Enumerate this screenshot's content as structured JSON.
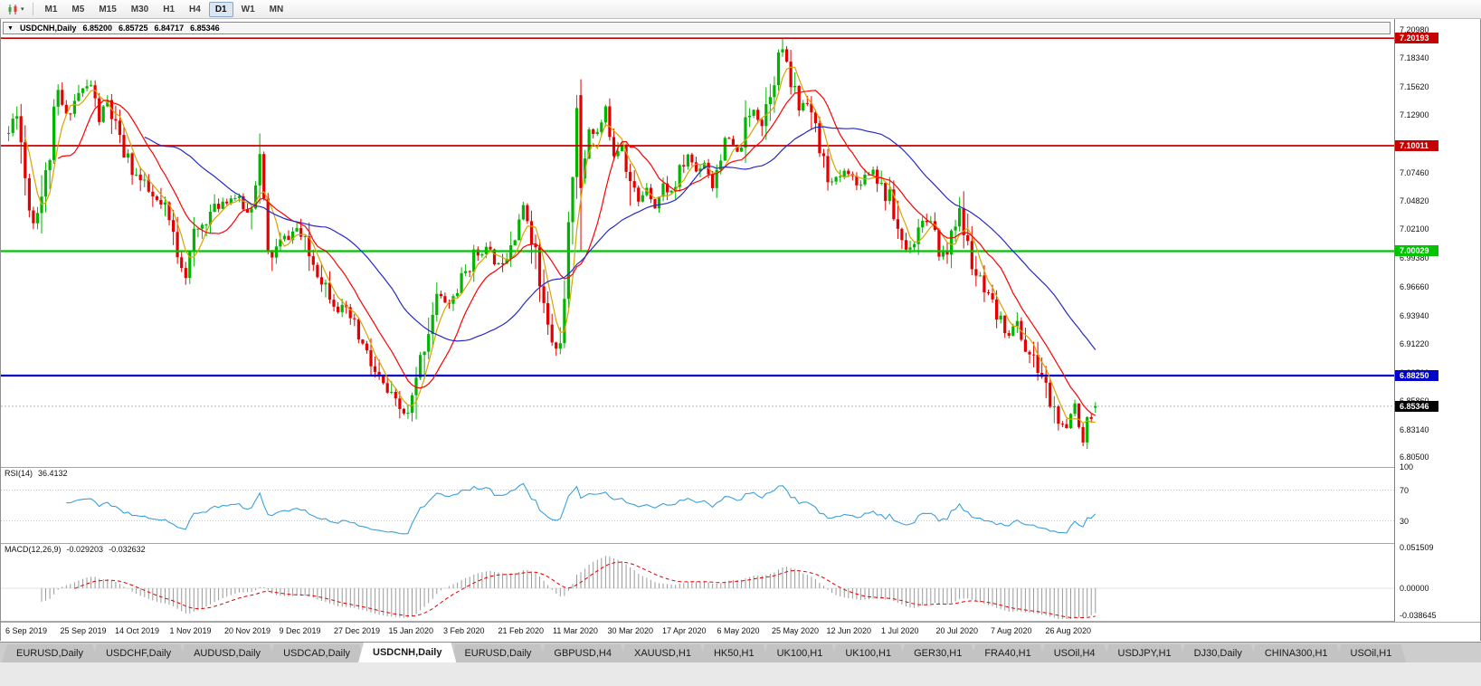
{
  "toolbar": {
    "chart_type_icon": "candlestick-chart",
    "timeframes": [
      "M1",
      "M5",
      "M15",
      "M30",
      "H1",
      "H4",
      "D1",
      "W1",
      "MN"
    ],
    "active_timeframe": "D1"
  },
  "chart_window": {
    "symbol_title": "USDCNH,Daily",
    "ohlc": {
      "open": "6.85200",
      "high": "6.85725",
      "low": "6.84717",
      "close": "6.85346"
    }
  },
  "price_axis": {
    "ticks": [
      "7.20980",
      "7.18340",
      "7.15620",
      "7.12900",
      "7.10180",
      "7.07460",
      "7.04820",
      "7.02100",
      "6.99380",
      "6.96660",
      "6.93940",
      "6.91220",
      "6.88500",
      "6.85860",
      "6.83140",
      "6.80500"
    ]
  },
  "levels": [
    {
      "label": "7.20193",
      "price": 7.20193,
      "color": "#c60000",
      "text": "#ffffff",
      "lw": 1.6,
      "current": false
    },
    {
      "label": "7.10011",
      "price": 7.10011,
      "color": "#c60000",
      "text": "#ffffff",
      "lw": 1.8,
      "current": false
    },
    {
      "label": "7.00029",
      "price": 7.00029,
      "color": "#00c400",
      "text": "#ffffff",
      "lw": 2.2,
      "current": false
    },
    {
      "label": "6.88250",
      "price": 6.8825,
      "color": "#0000cc",
      "text": "#ffffff",
      "lw": 2.2,
      "current": false
    },
    {
      "label": "6.85346",
      "price": 6.85346,
      "color": "#000000",
      "text": "#ffffff",
      "lw": 1,
      "current": true
    }
  ],
  "rsi_panel": {
    "name": "RSI(14)",
    "value": "36.4132",
    "ticks": [
      "100",
      "70",
      "30"
    ],
    "levels": [
      70,
      30
    ]
  },
  "macd_panel": {
    "name": "MACD(12,26,9)",
    "value_main": "-0.029203",
    "value_signal": "-0.032632",
    "ticks": [
      {
        "label": "0.051509",
        "v": 0.051509
      },
      {
        "label": "0.00000",
        "v": 0
      },
      {
        "label": "-0.038645",
        "v": -0.038645
      }
    ]
  },
  "date_axis": [
    "6 Sep 2019",
    "25 Sep 2019",
    "14 Oct 2019",
    "1 Nov 2019",
    "20 Nov 2019",
    "9 Dec 2019",
    "27 Dec 2019",
    "15 Jan 2020",
    "3 Feb 2020",
    "21 Feb 2020",
    "11 Mar 2020",
    "30 Mar 2020",
    "17 Apr 2020",
    "6 May 2020",
    "25 May 2020",
    "12 Jun 2020",
    "1 Jul 2020",
    "20 Jul 2020",
    "7 Aug 2020",
    "26 Aug 2020"
  ],
  "tabs": {
    "active_index": 4,
    "items": [
      "EURUSD,Daily",
      "USDCHF,Daily",
      "AUDUSD,Daily",
      "USDCAD,Daily",
      "USDCNH,Daily",
      "EURUSD,Daily",
      "GBPUSD,H4",
      "XAUUSD,H1",
      "HK50,H1",
      "UK100,H1",
      "UK100,H1",
      "GER30,H1",
      "FRA40,H1",
      "USOil,H4",
      "USDJPY,H1",
      "DJ30,Daily",
      "CHINA300,H1",
      "USOil,H1"
    ]
  },
  "chart_data": {
    "type": "candlestick",
    "symbol": "USDCNH",
    "timeframe": "Daily",
    "count": 265,
    "seed": 11,
    "colors": {
      "up": "#00b400",
      "down": "#e40000",
      "rsi": "#3aa0dc",
      "macd_hist": "#999999",
      "macd_signal": "#e00000"
    },
    "moving_averages": [
      {
        "period": 5,
        "color": "#d8a400"
      },
      {
        "period": 13,
        "color": "#ff0000"
      },
      {
        "period": 34,
        "color": "#2828c8"
      }
    ],
    "anchors": [
      [
        0,
        7.112
      ],
      [
        2,
        7.138
      ],
      [
        4,
        7.072
      ],
      [
        6,
        7.028
      ],
      [
        9,
        7.068
      ],
      [
        12,
        7.148
      ],
      [
        14,
        7.128
      ],
      [
        17,
        7.15
      ],
      [
        20,
        7.158
      ],
      [
        22,
        7.125
      ],
      [
        24,
        7.142
      ],
      [
        27,
        7.1
      ],
      [
        31,
        7.072
      ],
      [
        35,
        7.05
      ],
      [
        38,
        7.038
      ],
      [
        41,
        7.002
      ],
      [
        43,
        6.978
      ],
      [
        45,
        7.012
      ],
      [
        48,
        7.032
      ],
      [
        52,
        7.048
      ],
      [
        55,
        7.052
      ],
      [
        58,
        7.036
      ],
      [
        60,
        7.065
      ],
      [
        61,
        7.088
      ],
      [
        62,
        7.04
      ],
      [
        63,
        6.992
      ],
      [
        66,
        7.008
      ],
      [
        70,
        7.022
      ],
      [
        73,
        6.996
      ],
      [
        76,
        6.976
      ],
      [
        80,
        6.948
      ],
      [
        83,
        6.936
      ],
      [
        86,
        6.91
      ],
      [
        89,
        6.884
      ],
      [
        92,
        6.866
      ],
      [
        95,
        6.85
      ],
      [
        97,
        6.844
      ],
      [
        99,
        6.872
      ],
      [
        101,
        6.916
      ],
      [
        104,
        6.958
      ],
      [
        107,
        6.95
      ],
      [
        110,
        6.972
      ],
      [
        113,
        6.996
      ],
      [
        116,
        7.002
      ],
      [
        119,
        6.986
      ],
      [
        122,
        7.012
      ],
      [
        125,
        7.042
      ],
      [
        127,
        7.022
      ],
      [
        129,
        6.968
      ],
      [
        131,
        6.924
      ],
      [
        133,
        6.906
      ],
      [
        135,
        6.945
      ],
      [
        137,
        7.08
      ],
      [
        138,
        7.148
      ],
      [
        139,
        7.06
      ],
      [
        141,
        7.12
      ],
      [
        143,
        7.112
      ],
      [
        145,
        7.132
      ],
      [
        147,
        7.096
      ],
      [
        149,
        7.106
      ],
      [
        151,
        7.066
      ],
      [
        153,
        7.046
      ],
      [
        155,
        7.062
      ],
      [
        157,
        7.042
      ],
      [
        159,
        7.062
      ],
      [
        161,
        7.056
      ],
      [
        163,
        7.072
      ],
      [
        165,
        7.092
      ],
      [
        167,
        7.076
      ],
      [
        169,
        7.086
      ],
      [
        171,
        7.062
      ],
      [
        173,
        7.096
      ],
      [
        175,
        7.106
      ],
      [
        177,
        7.092
      ],
      [
        179,
        7.116
      ],
      [
        181,
        7.136
      ],
      [
        183,
        7.122
      ],
      [
        185,
        7.158
      ],
      [
        187,
        7.185
      ],
      [
        188,
        7.192
      ],
      [
        189,
        7.17
      ],
      [
        191,
        7.152
      ],
      [
        192,
        7.135
      ],
      [
        194,
        7.148
      ],
      [
        196,
        7.11
      ],
      [
        198,
        7.082
      ],
      [
        200,
        7.064
      ],
      [
        202,
        7.072
      ],
      [
        204,
        7.078
      ],
      [
        206,
        7.062
      ],
      [
        208,
        7.072
      ],
      [
        210,
        7.078
      ],
      [
        212,
        7.062
      ],
      [
        214,
        7.048
      ],
      [
        216,
        7.022
      ],
      [
        218,
        7.002
      ],
      [
        220,
        7.012
      ],
      [
        222,
        7.032
      ],
      [
        224,
        7.022
      ],
      [
        226,
        7.002
      ],
      [
        228,
        6.996
      ],
      [
        229,
        7.022
      ],
      [
        231,
        7.036
      ],
      [
        233,
        7.002
      ],
      [
        235,
        6.978
      ],
      [
        237,
        6.958
      ],
      [
        239,
        6.946
      ],
      [
        241,
        6.932
      ],
      [
        243,
        6.922
      ],
      [
        245,
        6.932
      ],
      [
        247,
        6.908
      ],
      [
        249,
        6.896
      ],
      [
        251,
        6.882
      ],
      [
        253,
        6.858
      ],
      [
        255,
        6.84
      ],
      [
        257,
        6.828
      ],
      [
        258,
        6.846
      ],
      [
        259,
        6.856
      ],
      [
        260,
        6.836
      ],
      [
        261,
        6.822
      ],
      [
        262,
        6.842
      ],
      [
        263,
        6.85
      ],
      [
        264,
        6.8535
      ]
    ],
    "overrides": [
      {
        "i": 97,
        "l": 6.8415
      },
      {
        "i": 139,
        "o": 7.148,
        "h": 7.163,
        "l": 7.0,
        "c": 7.06
      },
      {
        "i": 188,
        "h": 7.2016
      },
      {
        "i": 261,
        "l": 6.8155
      },
      {
        "i": 264,
        "o": 6.852,
        "h": 6.85725,
        "l": 6.84717,
        "c": 6.85346
      }
    ]
  }
}
